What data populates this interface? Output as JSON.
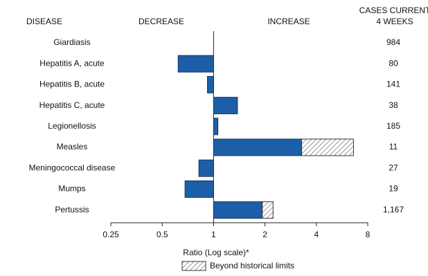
{
  "chart_data": {
    "type": "bar",
    "orientation": "horizontal",
    "xscale": "log",
    "headers": {
      "disease": "DISEASE",
      "decrease": "DECREASE",
      "increase": "INCREASE",
      "cases": [
        "CASES CURRENT",
        "4 WEEKS"
      ]
    },
    "categories": [
      "Giardiasis",
      "Hepatitis A, acute",
      "Hepatitis B, acute",
      "Hepatitis C, acute",
      "Legionellosis",
      "Measles",
      "Meningococcal disease",
      "Mumps",
      "Pertussis"
    ],
    "values": [
      1,
      0.62,
      0.92,
      1.38,
      1.06,
      6.6,
      0.82,
      0.68,
      2.23
    ],
    "beyond_from": [
      null,
      null,
      null,
      null,
      null,
      3.28,
      null,
      null,
      1.93
    ],
    "cases": [
      "984",
      "80",
      "141",
      "38",
      "185",
      "11",
      "27",
      "19",
      "1,167"
    ],
    "color": "#1c5fa8",
    "xlim": [
      0.25,
      8
    ],
    "xticks": [
      0.25,
      0.5,
      1,
      2,
      4,
      8
    ],
    "xlabel": "Ratio (Log scale)*",
    "legend": "Beyond historical limits"
  }
}
